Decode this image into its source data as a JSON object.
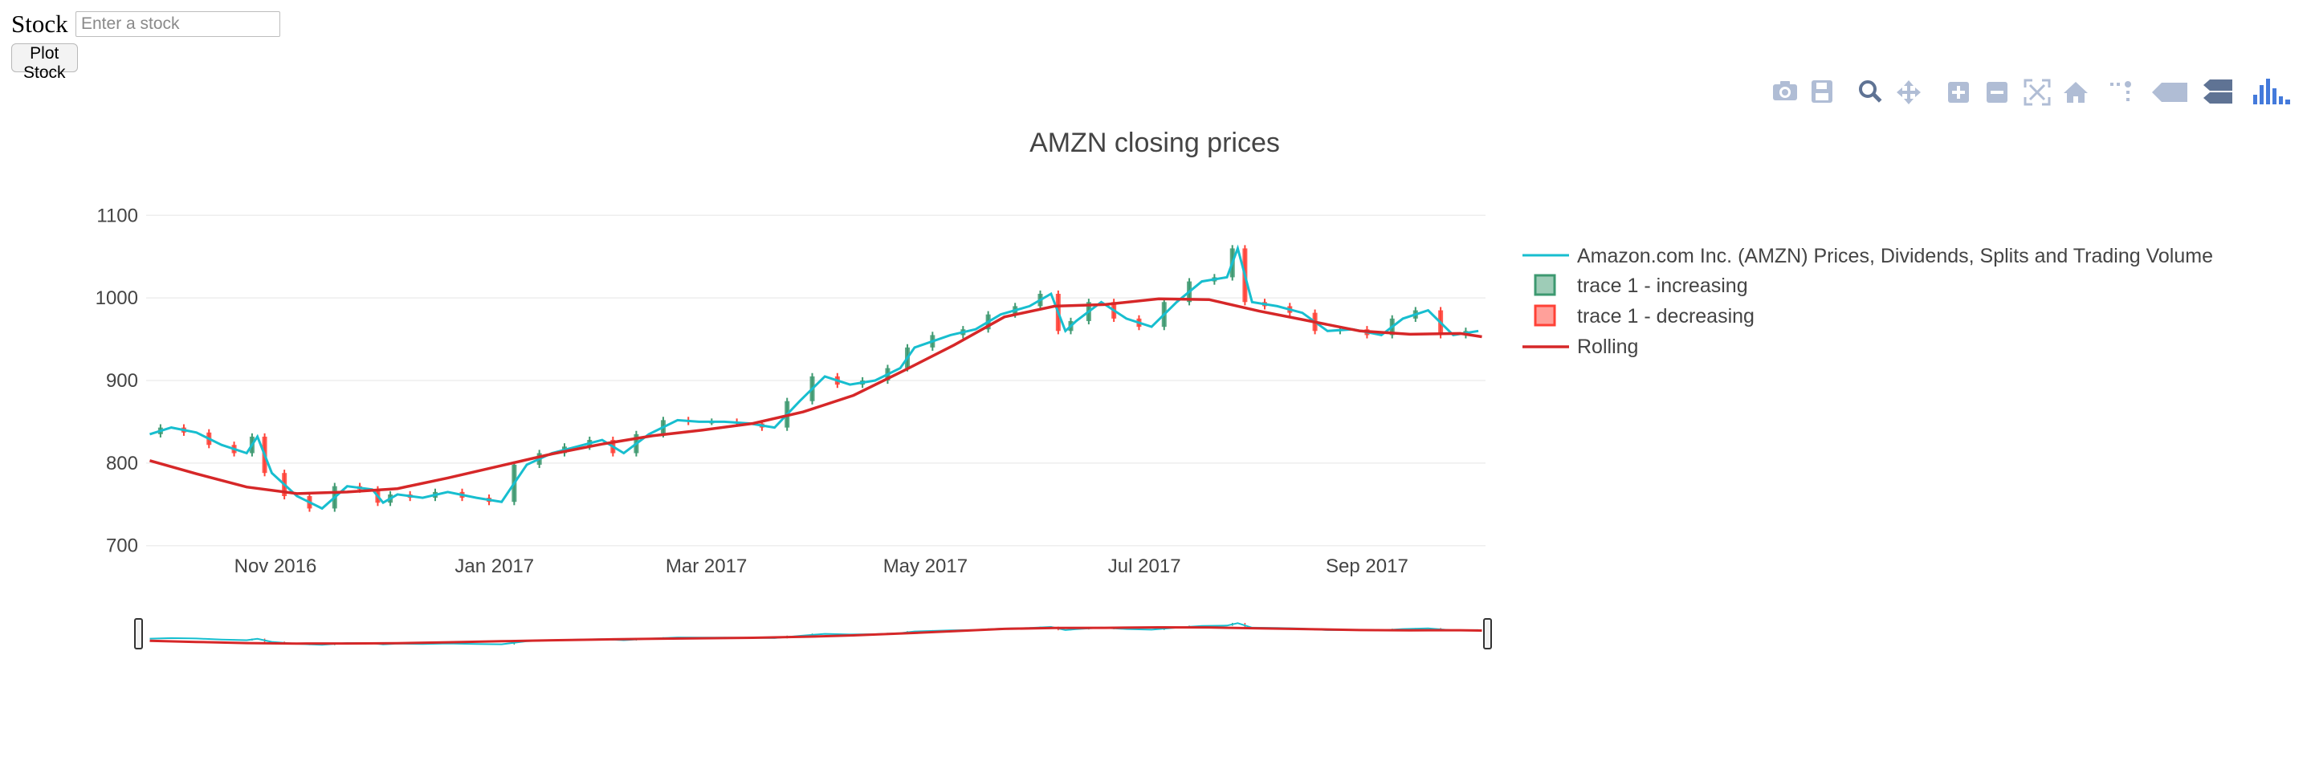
{
  "form": {
    "label": "Stock",
    "placeholder": "Enter a stock",
    "value": "",
    "button_label": "Plot Stock"
  },
  "modebar": {
    "icons": [
      "camera-icon",
      "save-icon",
      "zoom-icon",
      "pan-icon",
      "zoom-in-icon",
      "zoom-out-icon",
      "autoscale-icon",
      "reset-axes-icon",
      "spike-lines-icon",
      "hover-closest-icon",
      "hover-compare-icon",
      "plotly-logo-icon"
    ]
  },
  "colors": {
    "price_line": "#17becf",
    "increasing": "#3d9970",
    "decreasing": "#ff4136",
    "rolling": "#d62728",
    "grid": "#eeeeee",
    "text": "#444444"
  },
  "chart_data": {
    "type": "line",
    "title": "AMZN closing prices",
    "ylim": [
      690,
      1110
    ],
    "yticks": [
      700,
      800,
      900,
      1000,
      1100
    ],
    "xlim": [
      "2016-09-26",
      "2017-10-04"
    ],
    "xticks": [
      {
        "date": "2016-11-01",
        "label": "Nov 2016"
      },
      {
        "date": "2017-01-01",
        "label": "Jan 2017"
      },
      {
        "date": "2017-03-01",
        "label": "Mar 2017"
      },
      {
        "date": "2017-05-01",
        "label": "May 2017"
      },
      {
        "date": "2017-07-01",
        "label": "Jul 2017"
      },
      {
        "date": "2017-09-01",
        "label": "Sep 2017"
      }
    ],
    "legend_position": "right",
    "rangeslider": true,
    "series": [
      {
        "name": "Amazon.com Inc. (AMZN) Prices, Dividends, Splits and Trading Volume",
        "kind": "line",
        "x": [
          "2016-09-27",
          "2016-10-03",
          "2016-10-10",
          "2016-10-17",
          "2016-10-24",
          "2016-10-27",
          "2016-10-31",
          "2016-11-07",
          "2016-11-14",
          "2016-11-21",
          "2016-11-28",
          "2016-12-01",
          "2016-12-05",
          "2016-12-12",
          "2016-12-19",
          "2016-12-27",
          "2017-01-03",
          "2017-01-10",
          "2017-01-17",
          "2017-01-24",
          "2017-01-31",
          "2017-02-06",
          "2017-02-13",
          "2017-02-21",
          "2017-02-27",
          "2017-03-06",
          "2017-03-13",
          "2017-03-20",
          "2017-03-27",
          "2017-04-03",
          "2017-04-10",
          "2017-04-17",
          "2017-04-24",
          "2017-04-28",
          "2017-05-08",
          "2017-05-15",
          "2017-05-22",
          "2017-05-30",
          "2017-06-05",
          "2017-06-09",
          "2017-06-12",
          "2017-06-19",
          "2017-06-26",
          "2017-07-03",
          "2017-07-10",
          "2017-07-17",
          "2017-07-24",
          "2017-07-27",
          "2017-07-31",
          "2017-08-07",
          "2017-08-14",
          "2017-08-21",
          "2017-08-28",
          "2017-09-05",
          "2017-09-11",
          "2017-09-18",
          "2017-09-25",
          "2017-10-02"
        ],
        "values": [
          835,
          843,
          837,
          822,
          812,
          832,
          788,
          760,
          745,
          772,
          768,
          752,
          762,
          758,
          765,
          758,
          753,
          798,
          812,
          820,
          828,
          812,
          835,
          852,
          850,
          850,
          848,
          843,
          875,
          905,
          895,
          900,
          915,
          940,
          955,
          962,
          980,
          990,
          1005,
          960,
          972,
          995,
          975,
          965,
          995,
          1020,
          1025,
          1060,
          995,
          990,
          982,
          960,
          962,
          955,
          975,
          985,
          955,
          960
        ]
      },
      {
        "name": "trace 1 - increasing",
        "kind": "candlestick-up"
      },
      {
        "name": "trace 1 - decreasing",
        "kind": "candlestick-down"
      },
      {
        "name": "Rolling",
        "kind": "line",
        "x": [
          "2016-09-27",
          "2016-10-10",
          "2016-10-24",
          "2016-11-07",
          "2016-11-21",
          "2016-12-05",
          "2016-12-19",
          "2017-01-03",
          "2017-01-17",
          "2017-01-31",
          "2017-02-14",
          "2017-02-28",
          "2017-03-14",
          "2017-03-28",
          "2017-04-11",
          "2017-04-25",
          "2017-05-09",
          "2017-05-23",
          "2017-06-06",
          "2017-06-20",
          "2017-07-05",
          "2017-07-19",
          "2017-08-02",
          "2017-08-16",
          "2017-08-30",
          "2017-09-13",
          "2017-09-27",
          "2017-10-03"
        ],
        "values": [
          803,
          787,
          771,
          763,
          765,
          769,
          782,
          797,
          811,
          823,
          833,
          840,
          848,
          862,
          882,
          912,
          943,
          977,
          990,
          992,
          999,
          998,
          984,
          972,
          960,
          956,
          957,
          953
        ]
      }
    ]
  }
}
